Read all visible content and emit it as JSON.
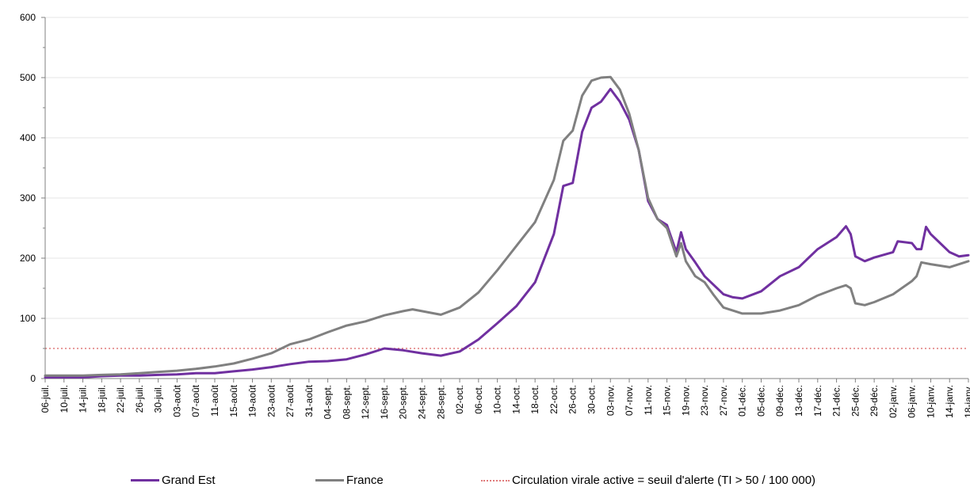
{
  "chart_data": {
    "type": "line",
    "ylim": [
      0,
      600
    ],
    "y_ticks": [
      0,
      100,
      200,
      300,
      400,
      500,
      600
    ],
    "x_ticks": [
      "06-juil.",
      "10-juil.",
      "14-juil.",
      "18-juil.",
      "22-juil.",
      "26-juil.",
      "30-juil.",
      "03-août",
      "07-août",
      "11-août",
      "15-août",
      "19-août",
      "23-août",
      "27-août",
      "31-août",
      "04-sept.",
      "08-sept.",
      "12-sept.",
      "16-sept.",
      "20-sept.",
      "24-sept.",
      "28-sept.",
      "02-oct.",
      "06-oct.",
      "10-oct.",
      "14-oct.",
      "18-oct.",
      "22-oct.",
      "26-oct.",
      "30-oct.",
      "03-nov.",
      "07-nov.",
      "11-nov.",
      "15-nov.",
      "19-nov.",
      "23-nov.",
      "27-nov.",
      "01-déc.",
      "05-déc.",
      "09-déc.",
      "13-déc.",
      "17-déc.",
      "21-déc.",
      "25-déc.",
      "29-déc.",
      "02-janv.",
      "06-janv.",
      "10-janv.",
      "14-janv.",
      "18-janv."
    ],
    "x_start": "06-juil.",
    "x_end": "18-janv.",
    "grid": "horizontal",
    "legend_position": "bottom",
    "series": [
      {
        "name": "Grand Est",
        "color": "#7030a0",
        "points": [
          [
            "06-juil.",
            2
          ],
          [
            "10-juil.",
            2
          ],
          [
            "14-juil.",
            2
          ],
          [
            "18-juil.",
            4
          ],
          [
            "22-juil.",
            5
          ],
          [
            "26-juil.",
            5
          ],
          [
            "30-juil.",
            6
          ],
          [
            "03-août",
            7
          ],
          [
            "07-août",
            9
          ],
          [
            "11-août",
            9
          ],
          [
            "15-août",
            12
          ],
          [
            "19-août",
            15
          ],
          [
            "23-août",
            19
          ],
          [
            "27-août",
            24
          ],
          [
            "31-août",
            28
          ],
          [
            "04-sept.",
            29
          ],
          [
            "08-sept.",
            32
          ],
          [
            "12-sept.",
            40
          ],
          [
            "16-sept.",
            50
          ],
          [
            "20-sept.",
            47
          ],
          [
            "24-sept.",
            42
          ],
          [
            "28-sept.",
            38
          ],
          [
            "02-oct.",
            45
          ],
          [
            "06-oct.",
            65
          ],
          [
            "10-oct.",
            92
          ],
          [
            "14-oct.",
            120
          ],
          [
            "18-oct.",
            160
          ],
          [
            "22-oct.",
            240
          ],
          [
            "24-oct.",
            320
          ],
          [
            "26-oct.",
            325
          ],
          [
            "28-oct.",
            410
          ],
          [
            "30-oct.",
            450
          ],
          [
            "01-nov.",
            460
          ],
          [
            "03-nov.",
            481
          ],
          [
            "05-nov.",
            460
          ],
          [
            "07-nov.",
            430
          ],
          [
            "09-nov.",
            380
          ],
          [
            "11-nov.",
            295
          ],
          [
            "13-nov.",
            265
          ],
          [
            "15-nov.",
            255
          ],
          [
            "17-nov.",
            210
          ],
          [
            "18-nov.",
            243
          ],
          [
            "19-nov.",
            215
          ],
          [
            "21-nov.",
            193
          ],
          [
            "23-nov.",
            170
          ],
          [
            "25-nov.",
            155
          ],
          [
            "27-nov.",
            140
          ],
          [
            "29-nov.",
            135
          ],
          [
            "01-déc.",
            133
          ],
          [
            "05-déc.",
            145
          ],
          [
            "09-déc.",
            170
          ],
          [
            "13-déc.",
            185
          ],
          [
            "17-déc.",
            215
          ],
          [
            "21-déc.",
            235
          ],
          [
            "23-déc.",
            253
          ],
          [
            "24-déc.",
            240
          ],
          [
            "25-déc.",
            203
          ],
          [
            "27-déc.",
            195
          ],
          [
            "29-déc.",
            201
          ],
          [
            "02-janv.",
            210
          ],
          [
            "03-janv.",
            228
          ],
          [
            "06-janv.",
            225
          ],
          [
            "07-janv.",
            215
          ],
          [
            "08-janv.",
            215
          ],
          [
            "09-janv.",
            252
          ],
          [
            "10-janv.",
            240
          ],
          [
            "12-janv.",
            225
          ],
          [
            "14-janv.",
            210
          ],
          [
            "16-janv.",
            203
          ],
          [
            "18-janv.",
            205
          ]
        ]
      },
      {
        "name": "France",
        "color": "#808080",
        "points": [
          [
            "06-juil.",
            5
          ],
          [
            "10-juil.",
            5
          ],
          [
            "14-juil.",
            5
          ],
          [
            "18-juil.",
            6
          ],
          [
            "22-juil.",
            7
          ],
          [
            "26-juil.",
            9
          ],
          [
            "30-juil.",
            11
          ],
          [
            "03-août",
            13
          ],
          [
            "07-août",
            16
          ],
          [
            "11-août",
            20
          ],
          [
            "15-août",
            25
          ],
          [
            "19-août",
            33
          ],
          [
            "23-août",
            42
          ],
          [
            "27-août",
            57
          ],
          [
            "31-août",
            65
          ],
          [
            "04-sept.",
            77
          ],
          [
            "08-sept.",
            88
          ],
          [
            "12-sept.",
            95
          ],
          [
            "16-sept.",
            105
          ],
          [
            "20-sept.",
            112
          ],
          [
            "22-sept.",
            115
          ],
          [
            "24-sept.",
            112
          ],
          [
            "28-sept.",
            106
          ],
          [
            "02-oct.",
            118
          ],
          [
            "06-oct.",
            143
          ],
          [
            "10-oct.",
            180
          ],
          [
            "14-oct.",
            220
          ],
          [
            "18-oct.",
            260
          ],
          [
            "22-oct.",
            330
          ],
          [
            "24-oct.",
            395
          ],
          [
            "26-oct.",
            412
          ],
          [
            "28-oct.",
            470
          ],
          [
            "30-oct.",
            495
          ],
          [
            "01-nov.",
            500
          ],
          [
            "03-nov.",
            501
          ],
          [
            "05-nov.",
            480
          ],
          [
            "07-nov.",
            440
          ],
          [
            "09-nov.",
            380
          ],
          [
            "11-nov.",
            300
          ],
          [
            "13-nov.",
            265
          ],
          [
            "15-nov.",
            250
          ],
          [
            "17-nov.",
            203
          ],
          [
            "18-nov.",
            225
          ],
          [
            "19-nov.",
            195
          ],
          [
            "21-nov.",
            170
          ],
          [
            "23-nov.",
            160
          ],
          [
            "25-nov.",
            138
          ],
          [
            "27-nov.",
            118
          ],
          [
            "01-déc.",
            108
          ],
          [
            "05-déc.",
            108
          ],
          [
            "09-déc.",
            113
          ],
          [
            "13-déc.",
            122
          ],
          [
            "17-déc.",
            138
          ],
          [
            "21-déc.",
            150
          ],
          [
            "23-déc.",
            155
          ],
          [
            "24-déc.",
            150
          ],
          [
            "25-déc.",
            125
          ],
          [
            "27-déc.",
            122
          ],
          [
            "29-déc.",
            127
          ],
          [
            "02-janv.",
            140
          ],
          [
            "06-janv.",
            162
          ],
          [
            "07-janv.",
            170
          ],
          [
            "08-janv.",
            193
          ],
          [
            "10-janv.",
            190
          ],
          [
            "14-janv.",
            185
          ],
          [
            "18-janv.",
            195
          ]
        ]
      },
      {
        "name": "Circulation virale active = seuil d'alerte (TI > 50 / 100 000)",
        "color": "#e07a7a",
        "style": "dotted",
        "points": [
          [
            "06-juil.",
            50
          ],
          [
            "18-janv.",
            50
          ]
        ]
      }
    ]
  }
}
